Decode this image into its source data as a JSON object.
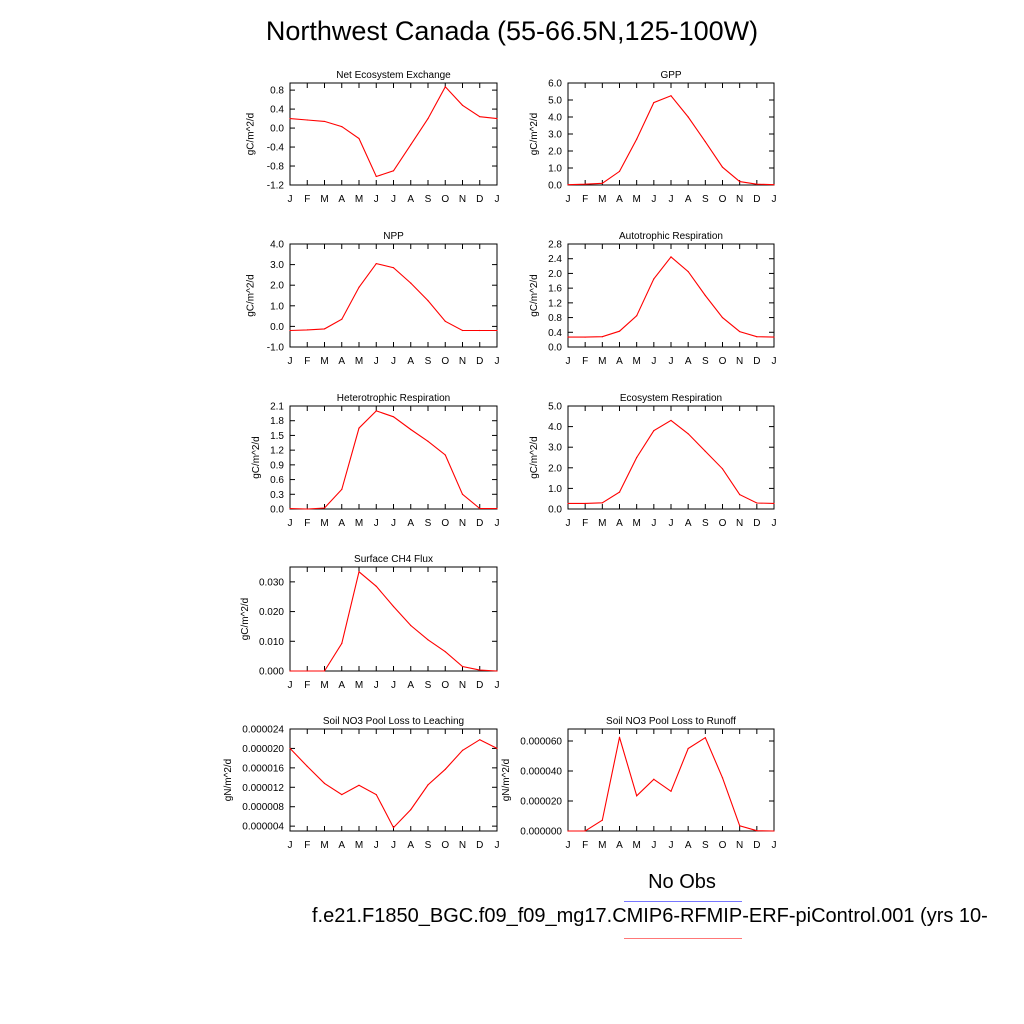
{
  "title": "Northwest Canada (55-66.5N,125-100W)",
  "legend": {
    "label": "No Obs",
    "colors": {
      "top_line": "#7777ff",
      "bottom_line": "#ff7777"
    }
  },
  "run_caption": "f.e21.F1850_BGC.f09_f09_mg17.CMIP6-RFMIP-ERF-piControl.001 (yrs 10-",
  "series_color": "#ff0000",
  "chart_data": [
    {
      "type": "line",
      "title": "Net Ecosystem Exchange",
      "ylabel": "gC/m^2/d",
      "categories": [
        "J",
        "F",
        "M",
        "A",
        "M",
        "J",
        "J",
        "A",
        "S",
        "O",
        "N",
        "D",
        "J"
      ],
      "values": [
        0.2,
        0.17,
        0.14,
        0.03,
        -0.22,
        -1.02,
        -0.9,
        -0.35,
        0.2,
        0.87,
        0.48,
        0.24,
        0.2
      ],
      "ylim": [
        -1.2,
        0.95
      ],
      "yticks": [
        -1.2,
        -0.8,
        -0.4,
        0.0,
        0.4,
        0.8
      ],
      "yticklabels": [
        "-1.2",
        "-0.8",
        "-0.4",
        "0.0",
        "0.4",
        "0.8"
      ]
    },
    {
      "type": "line",
      "title": "GPP",
      "ylabel": "gC/m^2/d",
      "categories": [
        "J",
        "F",
        "M",
        "A",
        "M",
        "J",
        "J",
        "A",
        "S",
        "O",
        "N",
        "D",
        "J"
      ],
      "values": [
        0.02,
        0.05,
        0.1,
        0.8,
        2.7,
        4.85,
        5.25,
        4.0,
        2.55,
        1.05,
        0.2,
        0.05,
        0.02
      ],
      "ylim": [
        0,
        6.0
      ],
      "yticks": [
        0,
        1,
        2,
        3,
        4,
        5,
        6
      ],
      "yticklabels": [
        "0.0",
        "1.0",
        "2.0",
        "3.0",
        "4.0",
        "5.0",
        "6.0"
      ]
    },
    {
      "type": "line",
      "title": "NPP",
      "ylabel": "gC/m^2/d",
      "categories": [
        "J",
        "F",
        "M",
        "A",
        "M",
        "J",
        "J",
        "A",
        "S",
        "O",
        "N",
        "D",
        "J"
      ],
      "values": [
        -0.2,
        -0.17,
        -0.12,
        0.35,
        1.9,
        3.05,
        2.85,
        2.1,
        1.25,
        0.25,
        -0.2,
        -0.2,
        -0.2
      ],
      "ylim": [
        -1.0,
        4.0
      ],
      "yticks": [
        -1,
        0,
        1,
        2,
        3,
        4
      ],
      "yticklabels": [
        "-1.0",
        "0.0",
        "1.0",
        "2.0",
        "3.0",
        "4.0"
      ]
    },
    {
      "type": "line",
      "title": "Autotrophic Respiration",
      "ylabel": "gC/m^2/d",
      "categories": [
        "J",
        "F",
        "M",
        "A",
        "M",
        "J",
        "J",
        "A",
        "S",
        "O",
        "N",
        "D",
        "J"
      ],
      "values": [
        0.27,
        0.27,
        0.28,
        0.43,
        0.85,
        1.85,
        2.45,
        2.05,
        1.4,
        0.8,
        0.42,
        0.28,
        0.27
      ],
      "ylim": [
        0,
        2.8
      ],
      "yticks": [
        0,
        0.4,
        0.8,
        1.2,
        1.6,
        2.0,
        2.4,
        2.8
      ],
      "yticklabels": [
        "0.0",
        "0.4",
        "0.8",
        "1.2",
        "1.6",
        "2.0",
        "2.4",
        "2.8"
      ]
    },
    {
      "type": "line",
      "title": "Heterotrophic Respiration",
      "ylabel": "gC/m^2/d",
      "categories": [
        "J",
        "F",
        "M",
        "A",
        "M",
        "J",
        "J",
        "A",
        "S",
        "O",
        "N",
        "D",
        "J"
      ],
      "values": [
        0.01,
        0.0,
        0.02,
        0.4,
        1.65,
        2.0,
        1.88,
        1.62,
        1.38,
        1.1,
        0.3,
        0.01,
        0.01
      ],
      "ylim": [
        0,
        2.1
      ],
      "yticks": [
        0,
        0.3,
        0.6,
        0.9,
        1.2,
        1.5,
        1.8,
        2.1
      ],
      "yticklabels": [
        "0.0",
        "0.3",
        "0.6",
        "0.9",
        "1.2",
        "1.5",
        "1.8",
        "2.1"
      ]
    },
    {
      "type": "line",
      "title": "Ecosystem Respiration",
      "ylabel": "gC/m^2/d",
      "categories": [
        "J",
        "F",
        "M",
        "A",
        "M",
        "J",
        "J",
        "A",
        "S",
        "O",
        "N",
        "D",
        "J"
      ],
      "values": [
        0.27,
        0.27,
        0.3,
        0.82,
        2.5,
        3.8,
        4.3,
        3.65,
        2.8,
        1.95,
        0.7,
        0.29,
        0.27
      ],
      "ylim": [
        0,
        5.0
      ],
      "yticks": [
        0,
        1,
        2,
        3,
        4,
        5
      ],
      "yticklabels": [
        "0.0",
        "1.0",
        "2.0",
        "3.0",
        "4.0",
        "5.0"
      ]
    },
    {
      "type": "line",
      "title": "Surface CH4 Flux",
      "ylabel": "gC/m^2/d",
      "categories": [
        "J",
        "F",
        "M",
        "A",
        "M",
        "J",
        "J",
        "A",
        "S",
        "O",
        "N",
        "D",
        "J"
      ],
      "values": [
        0.0,
        0.0,
        0.0,
        0.0093,
        0.0334,
        0.0285,
        0.0217,
        0.0153,
        0.0105,
        0.0065,
        0.0015,
        0.0003,
        0.0
      ],
      "ylim": [
        0,
        0.035
      ],
      "yticks": [
        0,
        0.01,
        0.02,
        0.03
      ],
      "yticklabels": [
        "0.000",
        "0.010",
        "0.020",
        "0.030"
      ]
    },
    {
      "type": "line",
      "title": "Soil NO3 Pool Loss to Leaching",
      "ylabel": "gN/m^2/d",
      "categories": [
        "J",
        "F",
        "M",
        "A",
        "M",
        "J",
        "J",
        "A",
        "S",
        "O",
        "N",
        "D",
        "J"
      ],
      "values": [
        2e-05,
        1.63e-05,
        1.28e-05,
        1.05e-05,
        1.24e-05,
        1.05e-05,
        3.7e-06,
        7.4e-06,
        1.25e-05,
        1.57e-05,
        1.96e-05,
        2.18e-05,
        2e-05
      ],
      "ylim": [
        3e-06,
        2.4e-05
      ],
      "yticks": [
        4e-06,
        8e-06,
        1.2e-05,
        1.6e-05,
        2e-05,
        2.4e-05
      ],
      "yticklabels": [
        "0.000004",
        "0.000008",
        "0.000012",
        "0.000016",
        "0.000020",
        "0.000024"
      ]
    },
    {
      "type": "line",
      "title": "Soil NO3 Pool Loss to Runoff",
      "ylabel": "gN/m^2/d",
      "categories": [
        "J",
        "F",
        "M",
        "A",
        "M",
        "J",
        "J",
        "A",
        "S",
        "O",
        "N",
        "D",
        "J"
      ],
      "values": [
        0.0,
        0.0,
        7.2e-06,
        6.25e-05,
        2.35e-05,
        3.45e-05,
        2.65e-05,
        5.5e-05,
        6.22e-05,
        3.55e-05,
        3.5e-06,
        2e-07,
        0.0
      ],
      "ylim": [
        0,
        6.8e-05
      ],
      "yticks": [
        0,
        2e-05,
        4e-05,
        6e-05
      ],
      "yticklabels": [
        "0.000000",
        "0.000020",
        "0.000040",
        "0.000060"
      ]
    }
  ]
}
